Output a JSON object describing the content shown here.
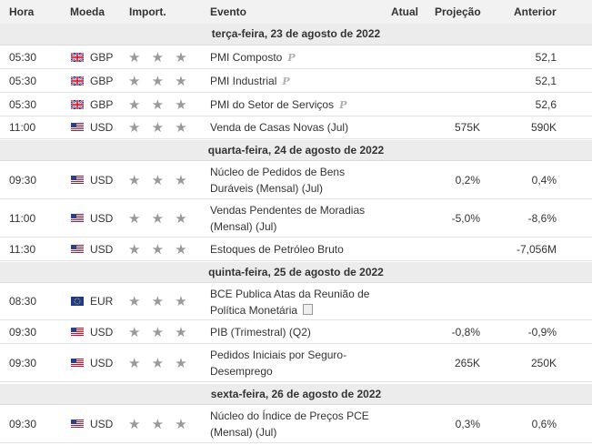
{
  "header": {
    "time": "Hora",
    "currency": "Moeda",
    "importance": "Import.",
    "event": "Evento",
    "actual": "Atual",
    "forecast": "Projeção",
    "previous": "Anterior"
  },
  "days": [
    {
      "label": "terça-feira, 23 de agosto de 2022",
      "events": [
        {
          "time": "05:30",
          "flag": "gb",
          "currency": "GBP",
          "stars": "★ ★ ★",
          "title": "PMI Composto",
          "icon": "P",
          "actual": "",
          "forecast": "",
          "previous": "52,1"
        },
        {
          "time": "05:30",
          "flag": "gb",
          "currency": "GBP",
          "stars": "★ ★ ★",
          "title": "PMI Industrial",
          "icon": "P",
          "actual": "",
          "forecast": "",
          "previous": "52,1"
        },
        {
          "time": "05:30",
          "flag": "gb",
          "currency": "GBP",
          "stars": "★ ★ ★",
          "title": "PMI do Setor de Serviços",
          "icon": "P",
          "actual": "",
          "forecast": "",
          "previous": "52,6"
        },
        {
          "time": "11:00",
          "flag": "us",
          "currency": "USD",
          "stars": "★ ★ ★",
          "title": "Venda de Casas Novas (Jul)",
          "icon": "",
          "actual": "",
          "forecast": "575K",
          "previous": "590K"
        }
      ]
    },
    {
      "label": "quarta-feira, 24 de agosto de 2022",
      "events": [
        {
          "time": "09:30",
          "flag": "us",
          "currency": "USD",
          "stars": "★ ★ ★",
          "title": "Núcleo de Pedidos de Bens Duráveis (Mensal) (Jul)",
          "icon": "",
          "actual": "",
          "forecast": "0,2%",
          "previous": "0,4%"
        },
        {
          "time": "11:00",
          "flag": "us",
          "currency": "USD",
          "stars": "★ ★ ★",
          "title": "Vendas Pendentes de Moradias (Mensal) (Jul)",
          "icon": "",
          "actual": "",
          "forecast": "-5,0%",
          "previous": "-8,6%"
        },
        {
          "time": "11:30",
          "flag": "us",
          "currency": "USD",
          "stars": "★ ★ ★",
          "title": "Estoques de Petróleo Bruto",
          "icon": "",
          "actual": "",
          "forecast": "",
          "previous": "-7,056M"
        }
      ]
    },
    {
      "label": "quinta-feira, 25 de agosto de 2022",
      "events": [
        {
          "time": "08:30",
          "flag": "eu",
          "currency": "EUR",
          "stars": "★ ★ ★",
          "title": "BCE Publica Atas da Reunião de Política Monetária",
          "icon": "doc",
          "actual": "",
          "forecast": "",
          "previous": ""
        },
        {
          "time": "09:30",
          "flag": "us",
          "currency": "USD",
          "stars": "★ ★ ★",
          "title": "PIB (Trimestral) (Q2)",
          "icon": "",
          "actual": "",
          "forecast": "-0,8%",
          "previous": "-0,9%"
        },
        {
          "time": "09:30",
          "flag": "us",
          "currency": "USD",
          "stars": "★ ★ ★",
          "title": "Pedidos Iniciais por Seguro-Desemprego",
          "icon": "",
          "actual": "",
          "forecast": "265K",
          "previous": "250K"
        }
      ]
    },
    {
      "label": "sexta-feira, 26 de agosto de 2022",
      "events": [
        {
          "time": "09:30",
          "flag": "us",
          "currency": "USD",
          "stars": "★ ★ ★",
          "title": "Núcleo do Índice de Preços PCE (Mensal) (Jul)",
          "icon": "",
          "actual": "",
          "forecast": "0,3%",
          "previous": "0,6%"
        }
      ]
    }
  ]
}
